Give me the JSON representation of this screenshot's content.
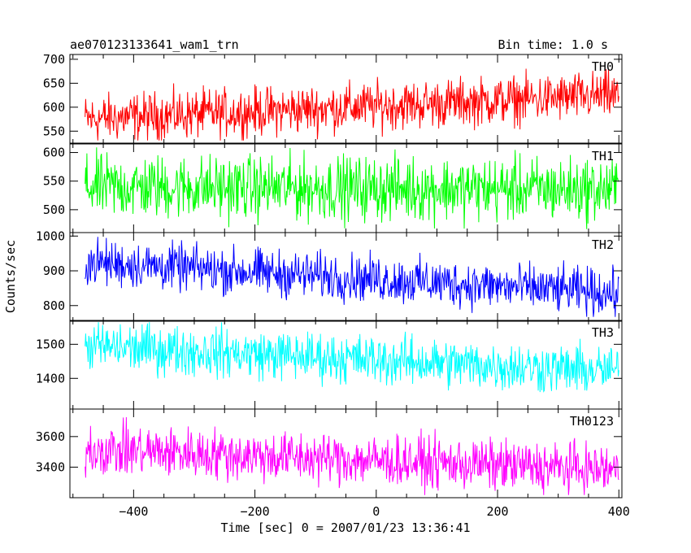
{
  "header": {
    "left_title": "ae070123133641_wam1_trn",
    "right_title": "Bin time: 1.0 s"
  },
  "axes": {
    "xlabel": "Time [sec] 0 = 2007/01/23 13:36:41",
    "ylabel": "Counts/sec"
  },
  "chart_data": {
    "type": "line",
    "title": "ae070123133641_wam1_trn",
    "subtitle": "Bin time: 1.0 s",
    "xlabel": "Time [sec] 0 = 2007/01/23 13:36:41",
    "ylabel": "Counts/sec",
    "xlim": [
      -505,
      405
    ],
    "x_step": 1.0,
    "x_ticks": [
      -400,
      -200,
      0,
      200,
      400
    ],
    "grid": false,
    "panels": [
      {
        "name": "TH0",
        "color": "#ff0000",
        "ylim": [
          525,
          710
        ],
        "yticks": [
          550,
          600,
          650,
          700
        ],
        "x": [
          -480,
          400
        ],
        "trend_y": [
          575,
          625
        ],
        "noise_amplitude": 45
      },
      {
        "name": "TH1",
        "color": "#00ff00",
        "ylim": [
          460,
          615
        ],
        "yticks": [
          500,
          550,
          600
        ],
        "x": [
          -480,
          400
        ],
        "trend_y": [
          540,
          535
        ],
        "noise_amplitude": 50
      },
      {
        "name": "TH2",
        "color": "#0000ff",
        "ylim": [
          755,
          1010
        ],
        "yticks": [
          800,
          900,
          1000
        ],
        "x": [
          -480,
          400
        ],
        "trend_y": [
          925,
          835
        ],
        "noise_amplitude": 60
      },
      {
        "name": "TH3",
        "color": "#00ffff",
        "ylim": [
          1310,
          1570
        ],
        "yticks": [
          1400,
          1500
        ],
        "x": [
          -480,
          400
        ],
        "trend_y": [
          1495,
          1420
        ],
        "noise_amplitude": 65
      },
      {
        "name": "TH0123",
        "color": "#ff00ff",
        "ylim": [
          3200,
          3780
        ],
        "yticks": [
          3400,
          3600
        ],
        "x": [
          -480,
          400
        ],
        "trend_y": [
          3520,
          3380
        ],
        "noise_amplitude": 150
      }
    ]
  }
}
